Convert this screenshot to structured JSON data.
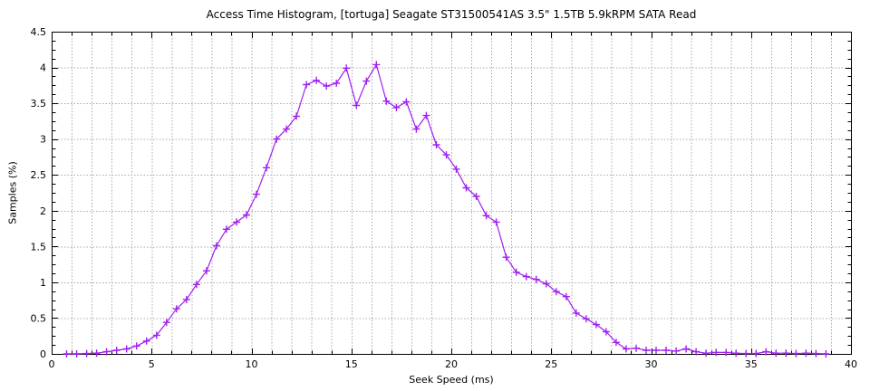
{
  "figure": {
    "background": "#ffffff",
    "frame_color": "#000000",
    "grid_color": "#a8a8a8"
  },
  "chart_data": {
    "type": "line",
    "title": "Access Time Histogram, [tortuga] Seagate ST31500541AS 3.5\" 1.5TB 5.9kRPM SATA Read",
    "xlabel": "Seek Speed (ms)",
    "ylabel": "Samples (%)",
    "xlim": [
      0,
      40
    ],
    "ylim": [
      0,
      4.5
    ],
    "x_major_ticks": [
      0,
      5,
      10,
      15,
      20,
      25,
      30,
      35,
      40
    ],
    "x_minor_step": 1,
    "y_major_ticks": [
      0,
      0.5,
      1,
      1.5,
      2,
      2.5,
      3,
      3.5,
      4,
      4.5
    ],
    "y_minor_step": 0.125,
    "grid": {
      "x_step": 1,
      "y_step": 0.5,
      "style": "dotted"
    },
    "legend_position": "none",
    "series": [
      {
        "name": "samples-histogram",
        "color": "#a020f0",
        "marker": "plus",
        "x": [
          0.75,
          1.25,
          1.75,
          2.25,
          2.75,
          3.25,
          3.75,
          4.25,
          4.75,
          5.25,
          5.75,
          6.25,
          6.75,
          7.25,
          7.75,
          8.25,
          8.75,
          9.25,
          9.75,
          10.25,
          10.75,
          11.25,
          11.75,
          12.25,
          12.75,
          13.25,
          13.75,
          14.25,
          14.75,
          15.25,
          15.75,
          16.25,
          16.75,
          17.25,
          17.75,
          18.25,
          18.75,
          19.25,
          19.75,
          20.25,
          20.75,
          21.25,
          21.75,
          22.25,
          22.75,
          23.25,
          23.75,
          24.25,
          24.75,
          25.25,
          25.75,
          26.25,
          26.75,
          27.25,
          27.75,
          28.25,
          28.75,
          29.25,
          29.75,
          30.25,
          30.75,
          31.25,
          31.75,
          32.25,
          32.75,
          33.25,
          33.75,
          34.25,
          34.75,
          35.25,
          35.75,
          36.25,
          36.75,
          37.25,
          37.75,
          38.25,
          38.75
        ],
        "y": [
          0,
          0,
          0.005,
          0.01,
          0.03,
          0.05,
          0.07,
          0.11,
          0.18,
          0.26,
          0.44,
          0.63,
          0.76,
          0.97,
          1.16,
          1.51,
          1.74,
          1.84,
          1.94,
          2.23,
          2.6,
          3.0,
          3.14,
          3.32,
          3.76,
          3.82,
          3.74,
          3.78,
          3.99,
          3.47,
          3.81,
          4.04,
          3.53,
          3.44,
          3.52,
          3.14,
          3.33,
          2.92,
          2.78,
          2.58,
          2.32,
          2.2,
          1.93,
          1.84,
          1.35,
          1.14,
          1.08,
          1.04,
          0.98,
          0.87,
          0.8,
          0.57,
          0.49,
          0.41,
          0.31,
          0.16,
          0.07,
          0.08,
          0.05,
          0.05,
          0.05,
          0.04,
          0.07,
          0.03,
          0.01,
          0.02,
          0.02,
          0.01,
          0.005,
          0.005,
          0.03,
          0.01,
          0.01,
          0.005,
          0.01,
          0.005,
          0
        ]
      }
    ]
  }
}
